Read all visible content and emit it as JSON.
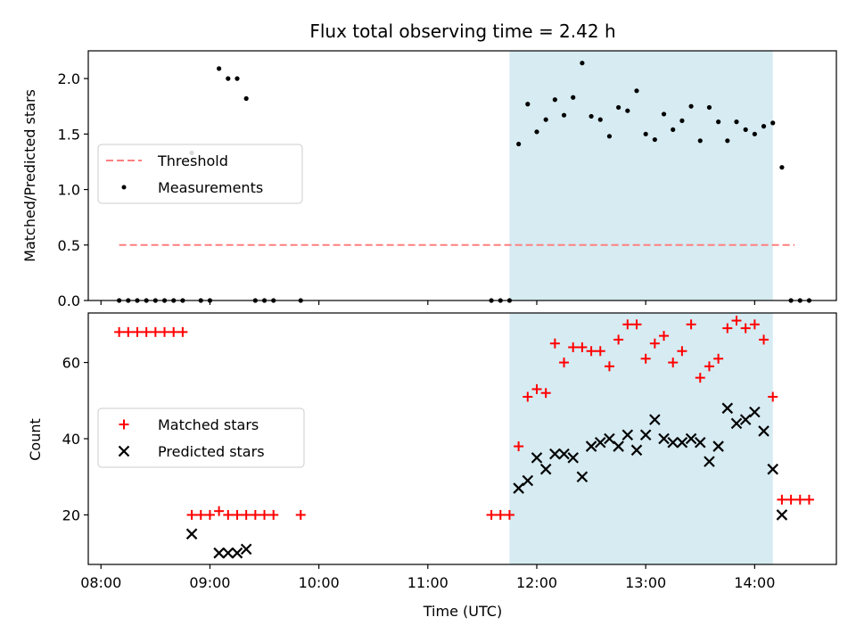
{
  "chart_data": [
    {
      "type": "scatter",
      "title": "Flux total observing time = 2.42 h",
      "ylabel": "Matched/Predicted stars",
      "xlim": [
        "07:53",
        "14:45"
      ],
      "ylim": [
        0,
        2.25
      ],
      "yticks": [
        "0.0",
        "0.5",
        "1.0",
        "1.5",
        "2.0"
      ],
      "yticks_values": [
        0,
        0.5,
        1.0,
        1.5,
        2.0
      ],
      "shaded_region": {
        "x_start": "11:45",
        "x_end": "14:10",
        "color": "#add8e6"
      },
      "threshold": {
        "name": "Threshold",
        "y": 0.5,
        "x_start": "08:10",
        "x_end": "14:22",
        "color": "#ff7f7f"
      },
      "legend": {
        "placement": "center-left",
        "entries": [
          "Threshold",
          "Measurements"
        ]
      },
      "series": [
        {
          "name": "Measurements",
          "marker": "dot",
          "color": "#000000",
          "points": [
            [
              "08:10",
              0
            ],
            [
              "08:15",
              0
            ],
            [
              "08:20",
              0
            ],
            [
              "08:25",
              0
            ],
            [
              "08:30",
              0
            ],
            [
              "08:35",
              0
            ],
            [
              "08:40",
              0
            ],
            [
              "08:45",
              0
            ],
            [
              "08:50",
              1.33
            ],
            [
              "08:55",
              0
            ],
            [
              "09:00",
              0
            ],
            [
              "09:05",
              2.09
            ],
            [
              "09:10",
              2.0
            ],
            [
              "09:15",
              2.0
            ],
            [
              "09:20",
              1.82
            ],
            [
              "09:25",
              0
            ],
            [
              "09:30",
              0
            ],
            [
              "09:35",
              0
            ],
            [
              "09:50",
              0
            ],
            [
              "11:35",
              0
            ],
            [
              "11:40",
              0
            ],
            [
              "11:45",
              0
            ],
            [
              "11:50",
              1.41
            ],
            [
              "11:55",
              1.77
            ],
            [
              "12:00",
              1.52
            ],
            [
              "12:05",
              1.63
            ],
            [
              "12:10",
              1.81
            ],
            [
              "12:15",
              1.67
            ],
            [
              "12:20",
              1.83
            ],
            [
              "12:25",
              2.14
            ],
            [
              "12:30",
              1.66
            ],
            [
              "12:35",
              1.63
            ],
            [
              "12:40",
              1.48
            ],
            [
              "12:45",
              1.74
            ],
            [
              "12:50",
              1.71
            ],
            [
              "12:55",
              1.89
            ],
            [
              "13:00",
              1.5
            ],
            [
              "13:05",
              1.45
            ],
            [
              "13:10",
              1.68
            ],
            [
              "13:15",
              1.54
            ],
            [
              "13:20",
              1.62
            ],
            [
              "13:25",
              1.75
            ],
            [
              "13:30",
              1.44
            ],
            [
              "13:35",
              1.74
            ],
            [
              "13:40",
              1.61
            ],
            [
              "13:45",
              1.44
            ],
            [
              "13:50",
              1.61
            ],
            [
              "13:55",
              1.54
            ],
            [
              "14:00",
              1.5
            ],
            [
              "14:05",
              1.57
            ],
            [
              "14:10",
              1.6
            ],
            [
              "14:15",
              1.2
            ],
            [
              "14:20",
              0
            ],
            [
              "14:25",
              0
            ],
            [
              "14:30",
              0
            ]
          ]
        }
      ]
    },
    {
      "type": "scatter",
      "ylabel": "Count",
      "xlabel": "Time (UTC)",
      "xlim": [
        "07:53",
        "14:45"
      ],
      "ylim": [
        7,
        73
      ],
      "xticks": [
        "08:00",
        "09:00",
        "10:00",
        "11:00",
        "12:00",
        "13:00",
        "14:00"
      ],
      "yticks": [
        "20",
        "40",
        "60"
      ],
      "yticks_values": [
        20,
        40,
        60
      ],
      "shaded_region": {
        "x_start": "11:45",
        "x_end": "14:10",
        "color": "#add8e6"
      },
      "legend": {
        "placement": "center-left",
        "entries": [
          "Matched stars",
          "Predicted stars"
        ]
      },
      "series": [
        {
          "name": "Matched stars",
          "marker": "plus",
          "color": "#ff0000",
          "points": [
            [
              "08:10",
              68
            ],
            [
              "08:15",
              68
            ],
            [
              "08:20",
              68
            ],
            [
              "08:25",
              68
            ],
            [
              "08:30",
              68
            ],
            [
              "08:35",
              68
            ],
            [
              "08:40",
              68
            ],
            [
              "08:45",
              68
            ],
            [
              "08:50",
              20
            ],
            [
              "08:55",
              20
            ],
            [
              "09:00",
              20
            ],
            [
              "09:05",
              21
            ],
            [
              "09:10",
              20
            ],
            [
              "09:15",
              20
            ],
            [
              "09:20",
              20
            ],
            [
              "09:25",
              20
            ],
            [
              "09:30",
              20
            ],
            [
              "09:35",
              20
            ],
            [
              "09:50",
              20
            ],
            [
              "11:35",
              20
            ],
            [
              "11:40",
              20
            ],
            [
              "11:45",
              20
            ],
            [
              "11:50",
              38
            ],
            [
              "11:55",
              51
            ],
            [
              "12:00",
              53
            ],
            [
              "12:05",
              52
            ],
            [
              "12:10",
              65
            ],
            [
              "12:15",
              60
            ],
            [
              "12:20",
              64
            ],
            [
              "12:25",
              64
            ],
            [
              "12:30",
              63
            ],
            [
              "12:35",
              63
            ],
            [
              "12:40",
              59
            ],
            [
              "12:45",
              66
            ],
            [
              "12:50",
              70
            ],
            [
              "12:55",
              70
            ],
            [
              "13:00",
              61
            ],
            [
              "13:05",
              65
            ],
            [
              "13:10",
              67
            ],
            [
              "13:15",
              60
            ],
            [
              "13:20",
              63
            ],
            [
              "13:25",
              70
            ],
            [
              "13:30",
              56
            ],
            [
              "13:35",
              59
            ],
            [
              "13:40",
              61
            ],
            [
              "13:45",
              69
            ],
            [
              "13:50",
              71
            ],
            [
              "13:55",
              69
            ],
            [
              "14:00",
              70
            ],
            [
              "14:05",
              66
            ],
            [
              "14:10",
              51
            ],
            [
              "14:15",
              24
            ],
            [
              "14:20",
              24
            ],
            [
              "14:25",
              24
            ],
            [
              "14:30",
              24
            ]
          ]
        },
        {
          "name": "Predicted stars",
          "marker": "x",
          "color": "#000000",
          "points": [
            [
              "08:50",
              15
            ],
            [
              "09:05",
              10
            ],
            [
              "09:10",
              10
            ],
            [
              "09:15",
              10
            ],
            [
              "09:20",
              11
            ],
            [
              "11:50",
              27
            ],
            [
              "11:55",
              29
            ],
            [
              "12:00",
              35
            ],
            [
              "12:05",
              32
            ],
            [
              "12:10",
              36
            ],
            [
              "12:15",
              36
            ],
            [
              "12:20",
              35
            ],
            [
              "12:25",
              30
            ],
            [
              "12:30",
              38
            ],
            [
              "12:35",
              39
            ],
            [
              "12:40",
              40
            ],
            [
              "12:45",
              38
            ],
            [
              "12:50",
              41
            ],
            [
              "12:55",
              37
            ],
            [
              "13:00",
              41
            ],
            [
              "13:05",
              45
            ],
            [
              "13:10",
              40
            ],
            [
              "13:15",
              39
            ],
            [
              "13:20",
              39
            ],
            [
              "13:25",
              40
            ],
            [
              "13:30",
              39
            ],
            [
              "13:35",
              34
            ],
            [
              "13:40",
              38
            ],
            [
              "13:45",
              48
            ],
            [
              "13:50",
              44
            ],
            [
              "13:55",
              45
            ],
            [
              "14:00",
              47
            ],
            [
              "14:05",
              42
            ],
            [
              "14:10",
              32
            ],
            [
              "14:15",
              20
            ]
          ]
        }
      ]
    }
  ]
}
